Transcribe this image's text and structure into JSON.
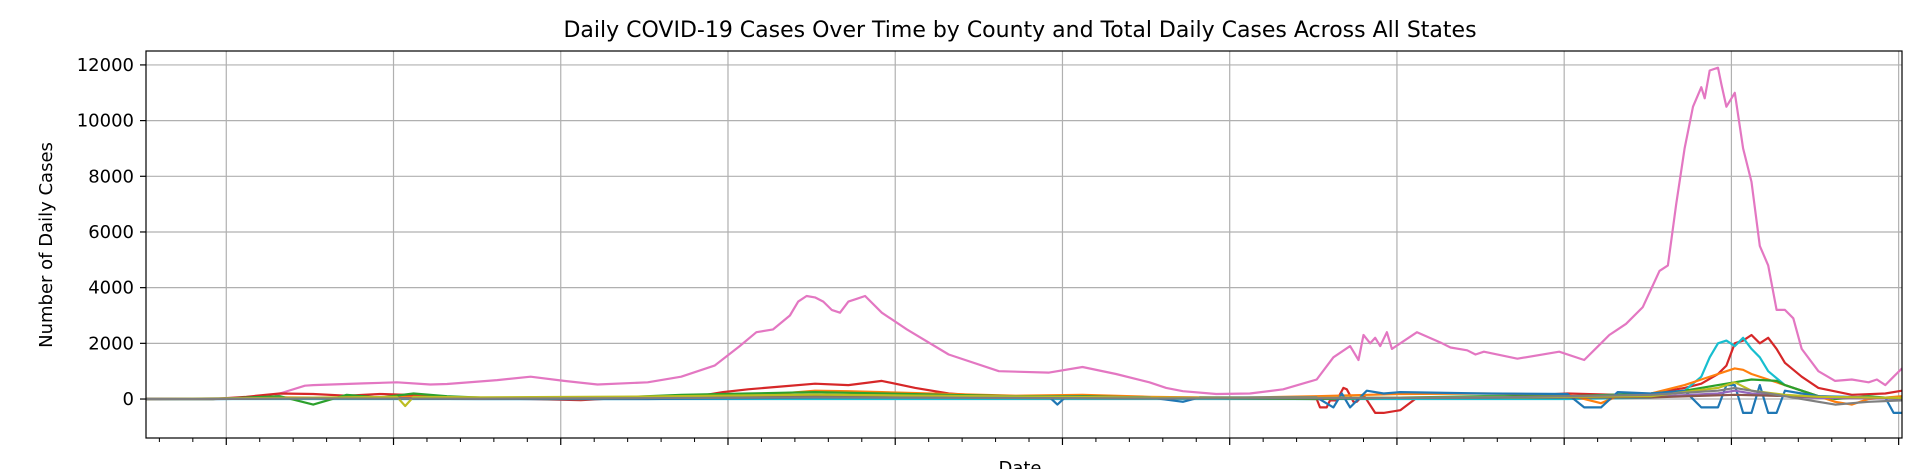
{
  "chart_data": {
    "type": "line",
    "title": "Daily COVID-19 Cases Over Time by County and Total Daily Cases Across All States",
    "xlabel": "Date",
    "ylabel": "Number of Daily Cases",
    "ylim": [
      -1400,
      12500
    ],
    "yticks": [
      0,
      2000,
      4000,
      6000,
      8000,
      10000,
      12000
    ],
    "ytick_labels": [
      "0",
      "2000",
      "4000",
      "6000",
      "8000",
      "10000",
      "12000"
    ],
    "xlim": [
      0,
      1050
    ],
    "x_major_ticks": [
      48,
      148,
      248,
      348,
      448,
      548,
      648,
      748,
      848,
      948,
      1048
    ],
    "x_minor_step": 20,
    "grid": true,
    "series": [
      {
        "color": "#e377c2",
        "x": [
          0,
          40,
          75,
          80,
          95,
          100,
          130,
          150,
          170,
          180,
          210,
          230,
          250,
          270,
          300,
          320,
          340,
          355,
          365,
          375,
          385,
          390,
          395,
          400,
          405,
          410,
          415,
          420,
          425,
          430,
          440,
          455,
          480,
          510,
          540,
          560,
          580,
          600,
          610,
          620,
          640,
          660,
          680,
          700,
          710,
          720,
          725,
          728,
          732,
          735,
          738,
          742,
          745,
          750,
          760,
          775,
          780,
          790,
          795,
          800,
          820,
          845,
          860,
          870,
          875,
          880,
          885,
          895,
          905,
          910,
          915,
          920,
          925,
          930,
          932,
          935,
          940,
          942,
          945,
          950,
          955,
          960,
          965,
          970,
          975,
          980,
          985,
          990,
          1000,
          1010,
          1020,
          1030,
          1035,
          1040,
          1045,
          1050
        ],
        "y": [
          0,
          0,
          20,
          200,
          480,
          500,
          560,
          600,
          520,
          540,
          680,
          800,
          650,
          520,
          600,
          800,
          1200,
          1900,
          2400,
          2500,
          3000,
          3500,
          3700,
          3650,
          3500,
          3200,
          3100,
          3500,
          3600,
          3700,
          3100,
          2500,
          1600,
          1000,
          950,
          1150,
          900,
          600,
          400,
          280,
          180,
          200,
          350,
          700,
          1500,
          1900,
          1400,
          2300,
          2000,
          2200,
          1900,
          2400,
          1800,
          2000,
          2400,
          2000,
          1850,
          1750,
          1600,
          1700,
          1450,
          1700,
          1400,
          2000,
          2300,
          2500,
          2700,
          3300,
          4600,
          4800,
          7000,
          9000,
          10500,
          11200,
          10800,
          11800,
          11900,
          11300,
          10500,
          11000,
          9000,
          7800,
          5500,
          4800,
          3200,
          3200,
          2900,
          1800,
          1000,
          650,
          700,
          600,
          700,
          500,
          800,
          1100
        ]
      },
      {
        "color": "#d62728",
        "x": [
          0,
          40,
          60,
          80,
          100,
          120,
          140,
          160,
          180,
          200,
          230,
          260,
          290,
          310,
          330,
          345,
          360,
          380,
          400,
          420,
          440,
          460,
          480,
          500,
          520,
          560,
          600,
          650,
          700,
          702,
          706,
          708,
          712,
          716,
          718,
          722,
          724,
          728,
          735,
          740,
          750,
          760,
          800,
          850,
          880,
          900,
          920,
          930,
          940,
          945,
          950,
          955,
          960,
          965,
          970,
          975,
          980,
          990,
          1000,
          1020,
          1040,
          1050
        ],
        "y": [
          0,
          0,
          80,
          200,
          180,
          120,
          180,
          140,
          60,
          20,
          0,
          -40,
          60,
          80,
          100,
          250,
          350,
          450,
          550,
          500,
          650,
          400,
          200,
          120,
          80,
          100,
          60,
          50,
          0,
          -300,
          -300,
          -50,
          -50,
          400,
          350,
          -100,
          -100,
          150,
          -500,
          -500,
          -400,
          50,
          50,
          200,
          150,
          200,
          400,
          550,
          900,
          1200,
          2000,
          2100,
          2300,
          2000,
          2200,
          1800,
          1300,
          800,
          400,
          150,
          200,
          300
        ]
      },
      {
        "color": "#17becf",
        "x": [
          0,
          700,
          850,
          900,
          920,
          930,
          935,
          940,
          945,
          950,
          955,
          960,
          965,
          970,
          980,
          1000,
          1050
        ],
        "y": [
          0,
          0,
          0,
          50,
          300,
          800,
          1500,
          2000,
          2100,
          1900,
          2200,
          1800,
          1500,
          1000,
          500,
          100,
          0
        ]
      },
      {
        "color": "#ff7f0e",
        "x": [
          0,
          40,
          80,
          120,
          160,
          200,
          260,
          300,
          340,
          380,
          400,
          420,
          440,
          480,
          520,
          560,
          600,
          650,
          700,
          750,
          800,
          850,
          870,
          880,
          900,
          920,
          930,
          940,
          945,
          950,
          955,
          960,
          970,
          980,
          990,
          1000,
          1010,
          1020,
          1030,
          1040,
          1050
        ],
        "y": [
          0,
          0,
          60,
          40,
          80,
          40,
          0,
          20,
          120,
          200,
          300,
          280,
          250,
          180,
          120,
          150,
          80,
          40,
          100,
          180,
          200,
          150,
          -150,
          100,
          200,
          500,
          700,
          900,
          1000,
          1100,
          1050,
          900,
          700,
          500,
          300,
          100,
          -100,
          -200,
          0,
          50,
          100
        ]
      },
      {
        "color": "#2ca02c",
        "x": [
          0,
          40,
          60,
          80,
          100,
          120,
          140,
          160,
          180,
          200,
          240,
          280,
          320,
          360,
          400,
          440,
          480,
          520,
          560,
          600,
          650,
          700,
          750,
          800,
          850,
          900,
          920,
          940,
          960,
          975,
          980,
          990,
          1000,
          1010,
          1020,
          1030,
          1040,
          1050
        ],
        "y": [
          0,
          0,
          50,
          100,
          -200,
          150,
          50,
          200,
          100,
          50,
          0,
          50,
          150,
          200,
          250,
          200,
          150,
          100,
          100,
          50,
          20,
          0,
          50,
          100,
          100,
          200,
          300,
          500,
          700,
          650,
          500,
          300,
          100,
          0,
          50,
          100,
          50,
          0
        ]
      },
      {
        "color": "#1f77b4",
        "x": [
          0,
          40,
          100,
          200,
          300,
          400,
          500,
          540,
          545,
          550,
          600,
          620,
          630,
          700,
          710,
          715,
          720,
          730,
          740,
          750,
          800,
          850,
          860,
          870,
          880,
          900,
          920,
          930,
          940,
          945,
          950,
          955,
          960,
          965,
          970,
          975,
          980,
          990,
          1000,
          1040,
          1045,
          1050
        ],
        "y": [
          0,
          0,
          20,
          0,
          0,
          50,
          60,
          80,
          -200,
          80,
          60,
          -100,
          60,
          60,
          -300,
          200,
          -300,
          300,
          200,
          250,
          200,
          180,
          -300,
          -300,
          250,
          200,
          300,
          -300,
          -300,
          500,
          500,
          -500,
          -500,
          500,
          -500,
          -500,
          300,
          200,
          100,
          50,
          -500,
          -500
        ]
      },
      {
        "color": "#9467bd",
        "x": [
          0,
          100,
          200,
          300,
          400,
          500,
          600,
          700,
          800,
          900,
          940,
          950,
          960,
          980,
          1000,
          1050
        ],
        "y": [
          0,
          40,
          20,
          80,
          150,
          100,
          50,
          40,
          60,
          80,
          200,
          300,
          200,
          100,
          40,
          20
        ]
      },
      {
        "color": "#8c564b",
        "x": [
          0,
          100,
          200,
          300,
          400,
          500,
          600,
          700,
          800,
          900,
          950,
          1000,
          1050
        ],
        "y": [
          0,
          30,
          20,
          60,
          120,
          80,
          40,
          30,
          50,
          60,
          150,
          80,
          30
        ]
      },
      {
        "color": "#bcbd22",
        "x": [
          0,
          100,
          150,
          155,
          160,
          200,
          300,
          400,
          500,
          600,
          700,
          800,
          900,
          940,
          950,
          960,
          980,
          1000,
          1050
        ],
        "y": [
          0,
          50,
          80,
          -250,
          80,
          60,
          90,
          160,
          100,
          50,
          40,
          60,
          100,
          400,
          600,
          300,
          150,
          80,
          40
        ]
      },
      {
        "color": "#7f7f7f",
        "x": [
          0,
          100,
          200,
          300,
          400,
          500,
          600,
          700,
          800,
          900,
          940,
          950,
          960,
          980,
          1000,
          1010,
          1020,
          1030,
          1050
        ],
        "y": [
          0,
          20,
          10,
          30,
          60,
          40,
          20,
          30,
          50,
          150,
          300,
          400,
          300,
          100,
          -100,
          -200,
          -150,
          -100,
          -50
        ]
      }
    ]
  }
}
